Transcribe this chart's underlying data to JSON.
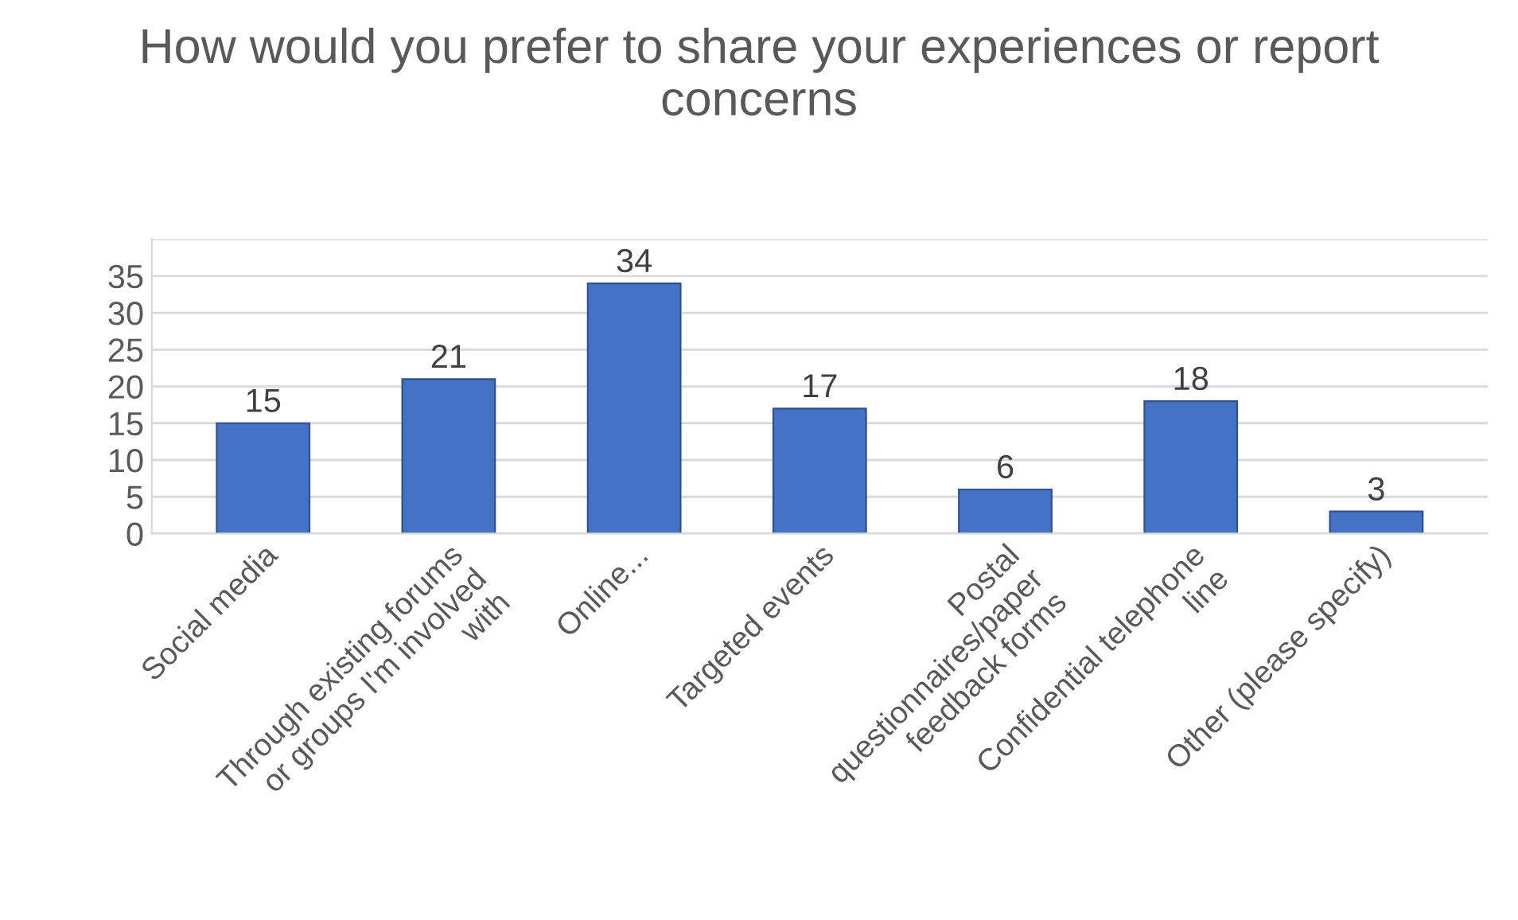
{
  "chart_data": {
    "type": "bar",
    "title": "How would you prefer to share your experiences or report\nconcerns",
    "categories": [
      "Social media",
      "Through existing forums\nor groups I'm involved\nwith",
      "Online...",
      "Targeted events",
      "Postal\nquestionnaires/paper\nfeedback forms",
      "Confidential telephone\nline",
      "Other (please specify)"
    ],
    "values": [
      15,
      21,
      34,
      17,
      6,
      18,
      3
    ],
    "color": "#4472c4",
    "ylim": [
      0,
      40
    ],
    "yticks": [
      0,
      5,
      10,
      15,
      20,
      25,
      30,
      35,
      {
        "value": 40,
        "label": null
      }
    ],
    "grid": "y",
    "data_labels": true
  }
}
